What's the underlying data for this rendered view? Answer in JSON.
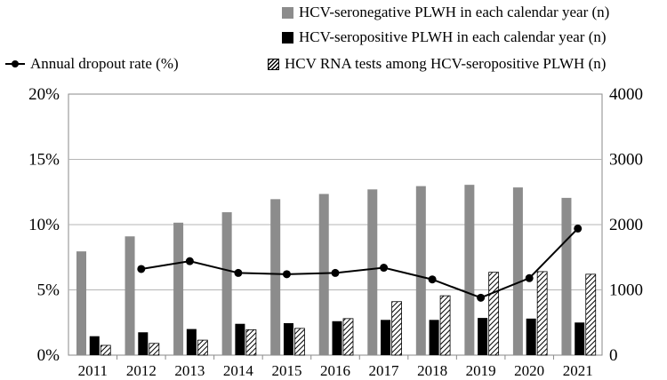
{
  "chart_data": {
    "type": "bar",
    "categories": [
      "2011",
      "2012",
      "2013",
      "2014",
      "2015",
      "2016",
      "2017",
      "2018",
      "2019",
      "2020",
      "2021"
    ],
    "series": [
      {
        "name": "HCV-seronegative PLWH in each calendar year (n)",
        "axis": "right",
        "kind": "bar",
        "color": "#8c8c8c",
        "values": [
          1590,
          1820,
          2030,
          2190,
          2390,
          2470,
          2540,
          2590,
          2610,
          2570,
          2410
        ]
      },
      {
        "name": "HCV-seropositive PLWH in each calendar year (n)",
        "axis": "right",
        "kind": "bar",
        "color": "#000000",
        "values": [
          290,
          350,
          400,
          480,
          490,
          520,
          540,
          540,
          570,
          560,
          500
        ]
      },
      {
        "name": "HCV RNA tests among HCV-seropositive PLWH (n)",
        "axis": "right",
        "kind": "bar-hatched",
        "color": "#000000",
        "values": [
          150,
          180,
          230,
          390,
          410,
          560,
          820,
          910,
          1270,
          1280,
          1240
        ]
      },
      {
        "name": "Annual dropout rate (%)",
        "axis": "left",
        "kind": "line",
        "color": "#000000",
        "values": [
          null,
          6.6,
          7.2,
          6.3,
          6.2,
          6.3,
          6.7,
          5.8,
          4.4,
          5.9,
          9.7
        ]
      }
    ],
    "y_left": {
      "ylim": [
        0,
        20
      ],
      "ticks": [
        "0%",
        "5%",
        "10%",
        "15%",
        "20%"
      ],
      "values": [
        0,
        5,
        10,
        15,
        20
      ]
    },
    "y_right": {
      "ylim": [
        0,
        4000
      ],
      "ticks": [
        "0",
        "1000",
        "2000",
        "3000",
        "4000"
      ],
      "values": [
        0,
        1000,
        2000,
        3000,
        4000
      ]
    },
    "title": "",
    "xlabel": "",
    "ylabel": ""
  },
  "legend": {
    "seronegative": "HCV-seronegative PLWH in each calendar year (n)",
    "seropositive": "HCV-seropositive PLWH in each calendar year (n)",
    "dropout": "Annual dropout rate (%)",
    "rna_tests": "HCV RNA tests among HCV-seropositive PLWH (n)"
  }
}
